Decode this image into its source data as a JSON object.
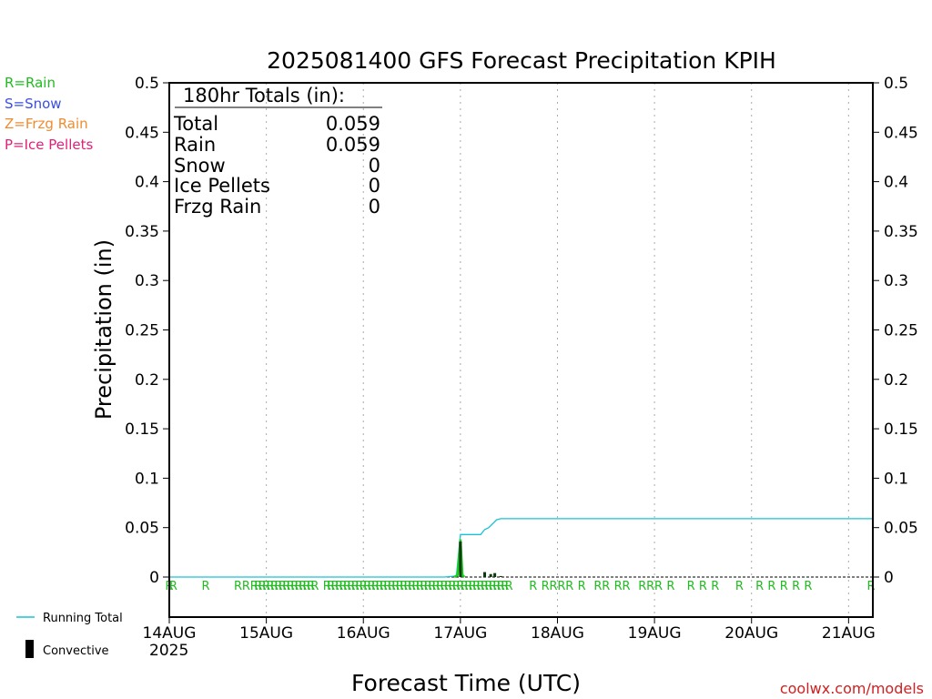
{
  "chart_data": {
    "type": "line",
    "title": "2025081400 GFS Forecast Precipitation KPIH",
    "xlabel": "Forecast Time (UTC)",
    "ylabel": "Precipitation (in)",
    "ylim": [
      0,
      0.5
    ],
    "xlim_hours": [
      0,
      174
    ],
    "yticks": [
      "0",
      "0.05",
      "0.1",
      "0.15",
      "0.2",
      "0.25",
      "0.3",
      "0.35",
      "0.4",
      "0.45",
      "0.5"
    ],
    "xticks": [
      {
        "label": "14AUG",
        "hour": 0
      },
      {
        "label": "15AUG",
        "hour": 24
      },
      {
        "label": "16AUG",
        "hour": 48
      },
      {
        "label": "17AUG",
        "hour": 72
      },
      {
        "label": "18AUG",
        "hour": 96
      },
      {
        "label": "19AUG",
        "hour": 120
      },
      {
        "label": "20AUG",
        "hour": 144
      },
      {
        "label": "21AUG",
        "hour": 168
      }
    ],
    "year_label": "2025",
    "grid": true,
    "precip_type_legend": [
      {
        "label": "R=Rain",
        "color": "#22bb22"
      },
      {
        "label": "S=Snow",
        "color": "#3b4fe0"
      },
      {
        "label": "Z=Frzg Rain",
        "color": "#f08c30"
      },
      {
        "label": "P=Ice Pellets",
        "color": "#e0207a"
      }
    ],
    "totals_box": {
      "heading": "180hr Totals (in):",
      "rows": [
        {
          "label": "Total",
          "value": "0.059"
        },
        {
          "label": "Rain",
          "value": "0.059"
        },
        {
          "label": "Snow",
          "value": "0"
        },
        {
          "label": "Ice Pellets",
          "value": "0"
        },
        {
          "label": "Frzg Rain",
          "value": "0"
        }
      ]
    },
    "series": [
      {
        "name": "Running Total",
        "color": "#19c3d6",
        "points": [
          [
            0,
            0
          ],
          [
            68,
            0
          ],
          [
            71,
            0.001
          ],
          [
            72,
            0.043
          ],
          [
            77,
            0.043
          ],
          [
            78,
            0.048
          ],
          [
            79,
            0.05
          ],
          [
            80,
            0.054
          ],
          [
            81,
            0.058
          ],
          [
            82,
            0.059
          ],
          [
            174,
            0.059
          ]
        ]
      },
      {
        "name": "Rain",
        "color": "#18d018",
        "points": [
          [
            70.5,
            0
          ],
          [
            71.3,
            0.002
          ],
          [
            72,
            0.038
          ],
          [
            72.5,
            0.002
          ],
          [
            73,
            0
          ]
        ]
      }
    ],
    "convective_bars": [
      {
        "hour": 72,
        "value": 0.036
      },
      {
        "hour": 78,
        "value": 0.005
      },
      {
        "hour": 79.5,
        "value": 0.003
      },
      {
        "hour": 80.5,
        "value": 0.004
      },
      {
        "hour": 82,
        "value": 0.001
      }
    ],
    "rain_type_hours": [
      0,
      1,
      9,
      17,
      19,
      21,
      22,
      23,
      24,
      25,
      26,
      27,
      28,
      29,
      30,
      31,
      32,
      33,
      34,
      35,
      36,
      39,
      40,
      41,
      42,
      43,
      44,
      45,
      46,
      47,
      48,
      49,
      50,
      51,
      52,
      53,
      54,
      55,
      56,
      57,
      58,
      59,
      60,
      61,
      62,
      63,
      64,
      65,
      66,
      67,
      68,
      69,
      70,
      71,
      72,
      73,
      74,
      75,
      76,
      77,
      78,
      79,
      80,
      81,
      82,
      83,
      84,
      90,
      93,
      95,
      97,
      99,
      102,
      106,
      108,
      111,
      113,
      117,
      119,
      121,
      124,
      129,
      132,
      135,
      141,
      146,
      149,
      152,
      155,
      158,
      178
    ],
    "rain_type_char": "R",
    "bottom_legend": [
      {
        "label": "Running Total",
        "color": "#19c3d6"
      },
      {
        "label": "Convective",
        "color": "#000000"
      }
    ],
    "credit": "coolwx.com/models"
  }
}
